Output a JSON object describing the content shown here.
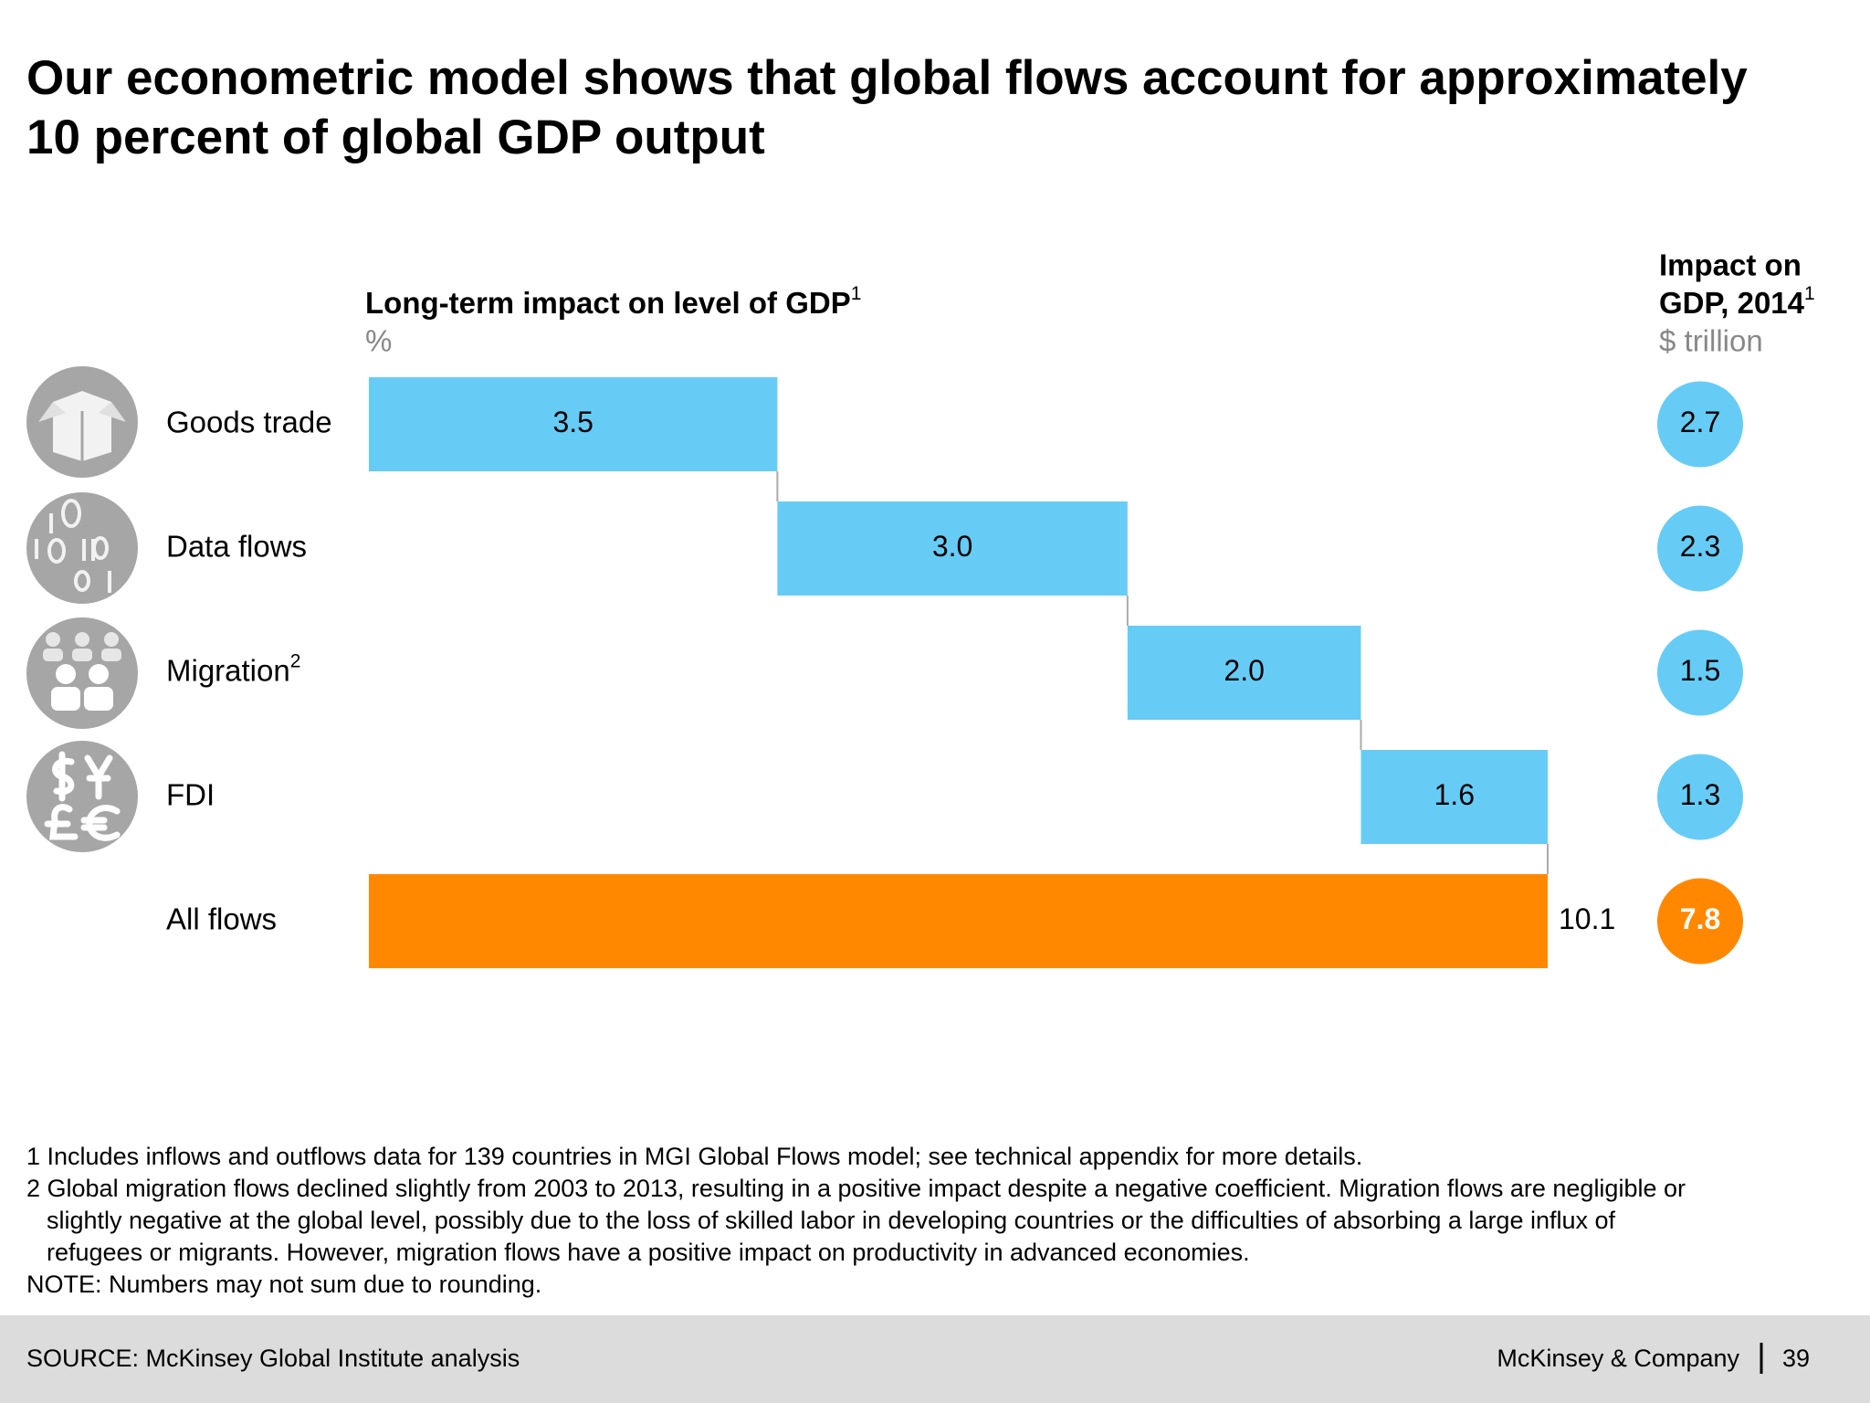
{
  "title": [
    "Our econometric model shows that global flows account for approximately",
    "10 percent of global GDP output"
  ],
  "chart_data": {
    "type": "waterfall",
    "x_title": "Long-term impact on level of GDP",
    "x_title_note": "1",
    "x_unit": "%",
    "categories": [
      "Goods trade",
      "Data flows",
      "Migration",
      "FDI",
      "All flows"
    ],
    "category_notes": [
      null,
      null,
      "2",
      null,
      null
    ],
    "values": [
      3.5,
      3.0,
      2.0,
      1.6,
      10.1
    ],
    "value_labels": [
      "3.5",
      "3.0",
      "2.0",
      "1.6",
      "10.1"
    ],
    "kinds": [
      "step",
      "step",
      "step",
      "step",
      "total"
    ],
    "color": "#66ccf5",
    "total_color": "#ff8800",
    "side": {
      "title": [
        "Impact on",
        "GDP, 2014"
      ],
      "title_note": "1",
      "unit": "$ trillion",
      "values": [
        2.7,
        2.3,
        1.5,
        1.3,
        7.8
      ]
    }
  },
  "footnotes": [
    "1 Includes inflows and outflows data for 139 countries in MGI Global Flows model; see technical appendix for more details.",
    "2 Global migration flows declined slightly from 2003 to 2013, resulting in a positive impact despite a negative coefficient. Migration flows are negligible or",
    "slightly negative at the global level, possibly due to the loss of skilled labor in developing countries or the difficulties of absorbing a large influx of",
    "refugees or migrants. However, migration flows have a positive impact on productivity in advanced economies.",
    "NOTE: Numbers may not sum due to rounding."
  ],
  "footer": {
    "source": "SOURCE: McKinsey Global Institute analysis",
    "company": "McKinsey & Company",
    "page": "39"
  }
}
